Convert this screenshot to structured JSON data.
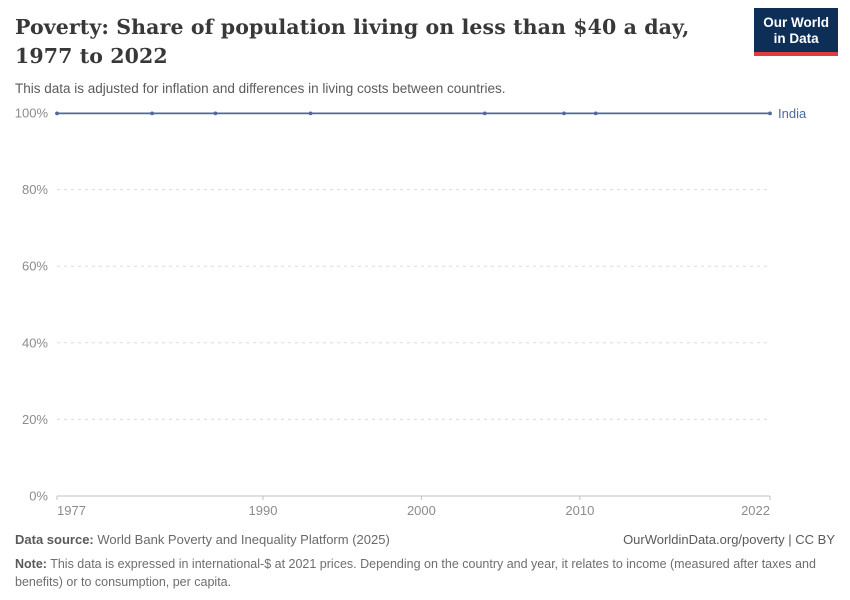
{
  "header": {
    "title": "Poverty: Share of population living on less than $40 a day, 1977 to 2022",
    "subtitle": "This data is adjusted for inflation and differences in living costs between countries.",
    "logo": {
      "line1": "Our World",
      "line2": "in Data"
    }
  },
  "chart_data": {
    "type": "line",
    "title": "Poverty: Share of population living on less than $40 a day, 1977 to 2022",
    "xlabel": "",
    "ylabel": "",
    "xlim": [
      1977,
      2022
    ],
    "ylim": [
      0,
      100
    ],
    "grid": true,
    "legend_position": "end-of-line-label",
    "series": [
      {
        "name": "India",
        "color": "#4c6a9c",
        "x": [
          1977,
          1983,
          1987,
          1993,
          2004,
          2009,
          2011,
          2022
        ],
        "values": [
          99.9,
          99.9,
          99.9,
          99.9,
          99.9,
          99.9,
          99.9,
          99.9
        ]
      }
    ],
    "yticks": [
      {
        "value": 0,
        "label": "0%"
      },
      {
        "value": 20,
        "label": "20%"
      },
      {
        "value": 40,
        "label": "40%"
      },
      {
        "value": 60,
        "label": "60%"
      },
      {
        "value": 80,
        "label": "80%"
      },
      {
        "value": 100,
        "label": "100%"
      }
    ],
    "xticks": [
      {
        "value": 1977,
        "label": "1977",
        "anchor": "start"
      },
      {
        "value": 1990,
        "label": "1990",
        "anchor": "middle"
      },
      {
        "value": 2000,
        "label": "2000",
        "anchor": "middle"
      },
      {
        "value": 2010,
        "label": "2010",
        "anchor": "middle"
      },
      {
        "value": 2022,
        "label": "2022",
        "anchor": "end"
      }
    ]
  },
  "footer": {
    "source_label": "Data source:",
    "source_value": " World Bank Poverty and Inequality Platform (2025)",
    "credit": "OurWorldinData.org/poverty | CC BY",
    "note_label": "Note:",
    "note_value": " This data is expressed in international-$ at 2021 prices. Depending on the country and year, it relates to income (measured after taxes and benefits) or to consumption, per capita."
  },
  "colors": {
    "series_line": "#4c6a9c",
    "grid_line": "#dcdcdc",
    "axis_line": "#c2c2c2",
    "tick_label": "#8c8c8c",
    "logo_bg": "#0d2e57",
    "logo_accent": "#dc3d3d"
  }
}
